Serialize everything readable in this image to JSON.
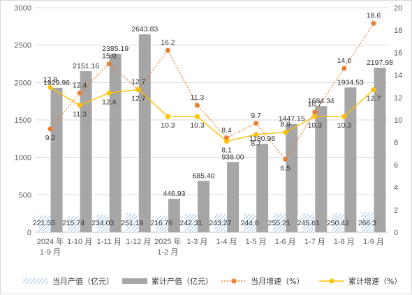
{
  "chart_data": {
    "type": "bar+line",
    "categories": [
      "2024 年\n1-9 月",
      "1-10 月",
      "1-11 月",
      "1-12 月",
      "2025 年\n1-2 月",
      "1-3 月",
      "1-4 月",
      "1-5 月",
      "1-6 月",
      "1-7 月",
      "1-8 月",
      "1-9 月"
    ],
    "y_left": {
      "min": 0,
      "max": 3000,
      "ticks": [
        "0",
        "500",
        "1000",
        "1500",
        "2000",
        "2500",
        "3000"
      ]
    },
    "y_right": {
      "min": 0,
      "max": 20,
      "ticks": [
        "0",
        "2",
        "4",
        "6",
        "8",
        "10",
        "12",
        "14",
        "16",
        "18",
        "20"
      ]
    },
    "series": [
      {
        "name": "当月产值（亿元）",
        "type": "bar",
        "axis": "left",
        "pattern": "hatched",
        "color": "#9dc3e6",
        "values": [
          221.55,
          215.74,
          234.03,
          251.19,
          216.76,
          242.31,
          243.27,
          244.6,
          255.21,
          245.61,
          250.42,
          266.3
        ],
        "labels": [
          "221.55",
          "215.74",
          "234.03",
          "251.19",
          "216.76",
          "242.31",
          "243.27",
          "244.6",
          "255.21",
          "245.61",
          "250.42",
          "266.3"
        ]
      },
      {
        "name": "累计产值（亿元）",
        "type": "bar",
        "axis": "left",
        "color": "#a6a6a6",
        "values": [
          1929.96,
          2151.16,
          2385.19,
          2643.83,
          446.93,
          685.4,
          938.0,
          1180.96,
          1447.15,
          1684.34,
          1934.53,
          2197.98
        ],
        "labels": [
          "1929.96",
          "2151.16",
          "2385.19",
          "2643.83",
          "446.93",
          "685.40",
          "938.00",
          "1180.96",
          "1447.15",
          "1684.34",
          "1934.53",
          "2197.98"
        ]
      },
      {
        "name": "当月增速（%）",
        "type": "line",
        "axis": "right",
        "style": "dotted",
        "color": "#ed7d31",
        "values": [
          9.2,
          12.4,
          15.0,
          12.7,
          16.2,
          11.3,
          8.4,
          9.7,
          6.5,
          10.7,
          14.6,
          18.6
        ],
        "labels": [
          "9.2",
          "12.4",
          "15.0",
          "12.7",
          "16.2",
          "11.3",
          "8.4",
          "9.7",
          "6.5",
          "10.7",
          "14.6",
          "18.6"
        ]
      },
      {
        "name": "累计增速（%）",
        "type": "line",
        "axis": "right",
        "style": "solid",
        "color": "#ffc000",
        "values": [
          12.9,
          11.3,
          12.4,
          12.7,
          10.3,
          10.3,
          8.1,
          8.7,
          8.9,
          10.3,
          10.3,
          12.7
        ],
        "labels": [
          "12.9",
          "11.3",
          "12.4",
          "12.7",
          "10.3",
          "10.3",
          "8.1",
          "8.7",
          "8.9",
          "10.3",
          "10.3",
          "12.7"
        ]
      }
    ],
    "legend_position": "bottom",
    "grid": true
  }
}
